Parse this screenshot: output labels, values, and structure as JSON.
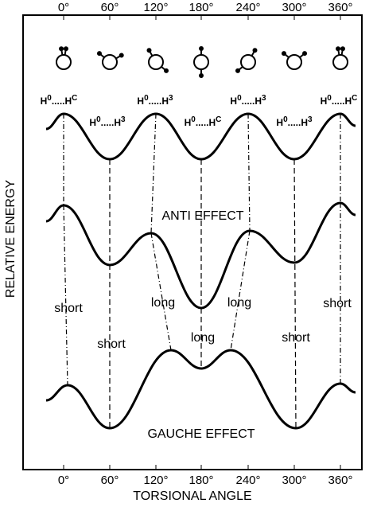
{
  "axis": {
    "x_label": "TORSIONAL ANGLE",
    "y_label": "RELATIVE ENERGY",
    "top_ticks": [
      "0°",
      "60°",
      "120°",
      "180°",
      "240°",
      "300°",
      "360°"
    ],
    "bottom_ticks": [
      "0°",
      "60°",
      "120°",
      "180°",
      "240°",
      "300°",
      "360°"
    ]
  },
  "interaction_labels": [
    [
      "H",
      "0",
      ".....",
      "H",
      "C"
    ],
    [
      "H",
      "0",
      ".....",
      "H",
      "3"
    ],
    [
      "H",
      "0",
      ".....",
      "H",
      "3"
    ],
    [
      "H",
      "0",
      ".....",
      "H",
      "C"
    ],
    [
      "H",
      "0",
      ".....",
      "H",
      "3"
    ],
    [
      "H",
      "0",
      ".....",
      "H",
      "3"
    ],
    [
      "H",
      "0",
      ".....",
      "H",
      "C"
    ]
  ],
  "curves": {
    "middle": "ANTI EFFECT",
    "bottom": "GAUCHE EFFECT"
  },
  "bond_labels": [
    "short",
    "short",
    "long",
    "long",
    "long",
    "short",
    "short"
  ]
}
